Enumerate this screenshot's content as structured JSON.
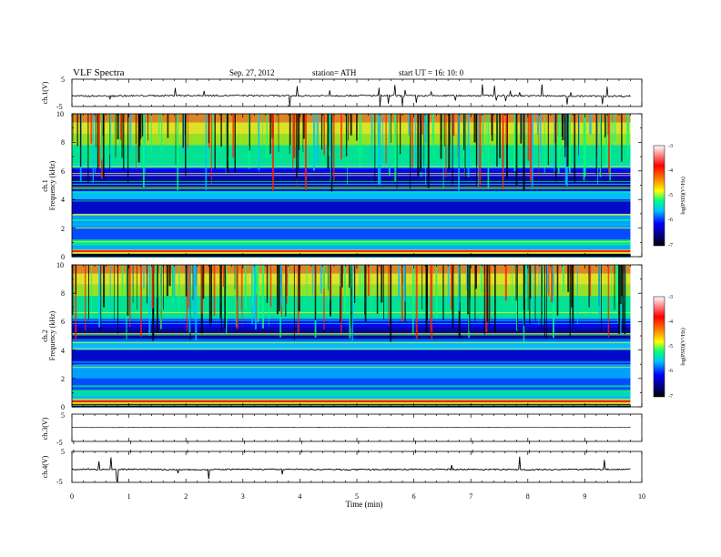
{
  "header": {
    "title": "VLF  Spectra",
    "date": "Sep. 27, 2012",
    "station": "station= ATH",
    "start_ut": "start  UT  =    16: 10: 0"
  },
  "axes": {
    "xlabel": "Time  (min)",
    "xticks": [
      "0",
      "1",
      "2",
      "3",
      "4",
      "5",
      "6",
      "7",
      "8",
      "9",
      "10"
    ],
    "ch1_ylabel": "ch.1(V)",
    "ch3_ylabel": "ch.3(V)",
    "ch4_ylabel": "ch.4(V)",
    "spec1_ylabel_ch": "ch.1",
    "spec2_ylabel_ch": "ch.2",
    "spec_ylabel": "Frequency  (kHz)",
    "wave_ticks": [
      "5",
      "-5"
    ],
    "freq_ticks": [
      "10",
      "8",
      "6",
      "4",
      "2",
      "0"
    ]
  },
  "colorbar": {
    "label": "log(PSD)(V²/Hz)",
    "ticks": [
      "-3",
      "-4",
      "-5",
      "-6",
      "-7"
    ],
    "colors": [
      "#ff0000",
      "#ff8000",
      "#ffff00",
      "#00ff80",
      "#00c0ff",
      "#0000ff",
      "#00007f",
      "#000000"
    ]
  },
  "chart_data": [
    {
      "type": "line",
      "title": "VLF  Spectra",
      "ylabel": "ch.1(V)",
      "xlabel": "Time  (min)",
      "xlim": [
        0,
        10
      ],
      "ylim": [
        -5,
        5
      ],
      "series": [
        {
          "x": [
            0,
            1,
            2,
            3,
            4,
            5,
            6,
            7,
            8,
            9,
            9.8
          ],
          "values": [
            -1.2,
            -1.1,
            -1.0,
            -1.0,
            -1.1,
            -1.0,
            -1.1,
            -1.0,
            -1.1,
            -1.2,
            -1.2
          ]
        }
      ]
    },
    {
      "type": "heatmap",
      "ylabel": "Frequency  (kHz)",
      "xlim": [
        0,
        10
      ],
      "ylim": [
        0,
        10
      ],
      "colorbar_label": "log(PSD)(V²/Hz)",
      "color_range": [
        -7,
        -3
      ]
    },
    {
      "type": "heatmap",
      "ylabel": "Frequency  (kHz)",
      "xlim": [
        0,
        10
      ],
      "ylim": [
        0,
        10
      ],
      "colorbar_label": "log(PSD)(V²/Hz)",
      "color_range": [
        -7,
        -3
      ]
    },
    {
      "type": "line",
      "ylabel": "ch.3(V)",
      "xlim": [
        0,
        10
      ],
      "ylim": [
        -5,
        5
      ],
      "series": [
        {
          "x": [
            0,
            9.8
          ],
          "values": [
            0.1,
            0.1
          ]
        }
      ]
    },
    {
      "type": "line",
      "ylabel": "ch.4(V)",
      "xlim": [
        0,
        10
      ],
      "ylim": [
        -5,
        5
      ],
      "series": [
        {
          "x": [
            0,
            1,
            2,
            3,
            4,
            5,
            6,
            7,
            8,
            9,
            9.8
          ],
          "values": [
            -0.8,
            -0.8,
            -0.9,
            -0.8,
            -0.8,
            -0.9,
            -0.8,
            -0.8,
            -0.9,
            -0.8,
            -0.8
          ]
        }
      ]
    }
  ]
}
